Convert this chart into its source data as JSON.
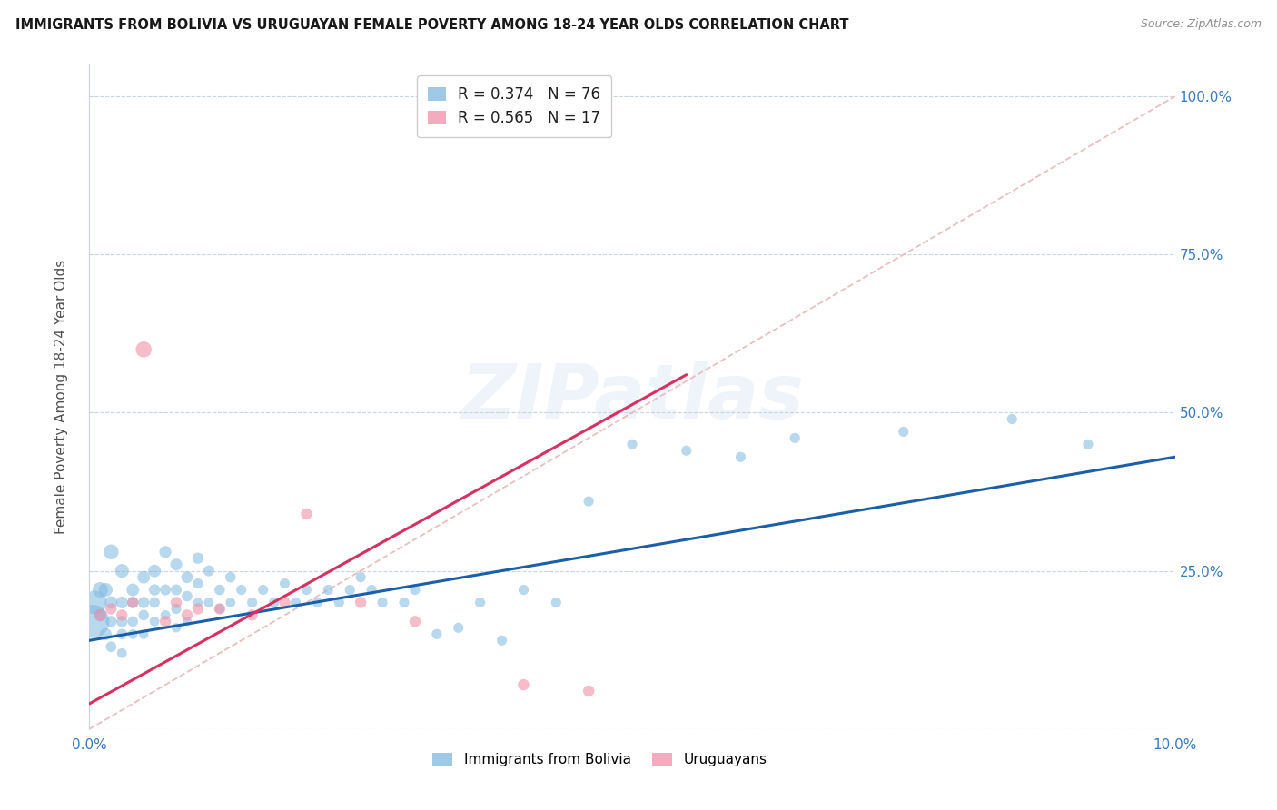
{
  "title": "IMMIGRANTS FROM BOLIVIA VS URUGUAYAN FEMALE POVERTY AMONG 18-24 YEAR OLDS CORRELATION CHART",
  "source": "Source: ZipAtlas.com",
  "ylabel": "Female Poverty Among 18-24 Year Olds",
  "xlim": [
    0.0,
    0.1
  ],
  "ylim": [
    0.0,
    1.05
  ],
  "xticks": [
    0.0,
    0.02,
    0.04,
    0.06,
    0.08,
    0.1
  ],
  "xtick_labels": [
    "0.0%",
    "",
    "",
    "",
    "",
    "10.0%"
  ],
  "ytick_positions": [
    0.0,
    0.25,
    0.5,
    0.75,
    1.0
  ],
  "ytick_labels": [
    "",
    "25.0%",
    "50.0%",
    "75.0%",
    "100.0%"
  ],
  "bolivia_color": "#7fb8e0",
  "uruguay_color": "#f090a8",
  "bolivia_alpha": 0.55,
  "uruguay_alpha": 0.6,
  "trend_bolivia_color": "#1a5fa8",
  "trend_uruguay_color": "#d83060",
  "diagonal_color": "#e8b8b8",
  "watermark": "ZIPatlas",
  "bolivia_R": 0.374,
  "bolivia_N": 76,
  "uruguay_R": 0.565,
  "uruguay_N": 17,
  "bolivia_trend_x": [
    0.0,
    0.1
  ],
  "bolivia_trend_y": [
    0.14,
    0.43
  ],
  "uruguay_trend_x": [
    0.0,
    0.055
  ],
  "uruguay_trend_y": [
    0.04,
    0.56
  ],
  "bolivia_x": [
    0.0003,
    0.0005,
    0.001,
    0.001,
    0.0015,
    0.0015,
    0.002,
    0.002,
    0.002,
    0.002,
    0.003,
    0.003,
    0.003,
    0.003,
    0.003,
    0.004,
    0.004,
    0.004,
    0.004,
    0.005,
    0.005,
    0.005,
    0.005,
    0.006,
    0.006,
    0.006,
    0.006,
    0.007,
    0.007,
    0.007,
    0.008,
    0.008,
    0.008,
    0.008,
    0.009,
    0.009,
    0.009,
    0.01,
    0.01,
    0.01,
    0.011,
    0.011,
    0.012,
    0.012,
    0.013,
    0.013,
    0.014,
    0.015,
    0.016,
    0.017,
    0.018,
    0.019,
    0.02,
    0.021,
    0.022,
    0.023,
    0.024,
    0.025,
    0.026,
    0.027,
    0.029,
    0.03,
    0.032,
    0.034,
    0.036,
    0.038,
    0.04,
    0.043,
    0.046,
    0.05,
    0.055,
    0.06,
    0.065,
    0.075,
    0.085,
    0.092
  ],
  "bolivia_y": [
    0.17,
    0.2,
    0.22,
    0.18,
    0.22,
    0.15,
    0.28,
    0.2,
    0.17,
    0.13,
    0.25,
    0.2,
    0.17,
    0.15,
    0.12,
    0.22,
    0.2,
    0.17,
    0.15,
    0.24,
    0.2,
    0.18,
    0.15,
    0.25,
    0.22,
    0.2,
    0.17,
    0.28,
    0.22,
    0.18,
    0.26,
    0.22,
    0.19,
    0.16,
    0.24,
    0.21,
    0.17,
    0.27,
    0.23,
    0.2,
    0.25,
    0.2,
    0.22,
    0.19,
    0.24,
    0.2,
    0.22,
    0.2,
    0.22,
    0.2,
    0.23,
    0.2,
    0.22,
    0.2,
    0.22,
    0.2,
    0.22,
    0.24,
    0.22,
    0.2,
    0.2,
    0.22,
    0.15,
    0.16,
    0.2,
    0.14,
    0.22,
    0.2,
    0.36,
    0.45,
    0.44,
    0.43,
    0.46,
    0.47,
    0.49,
    0.45
  ],
  "bolivia_size": [
    700,
    350,
    150,
    100,
    120,
    90,
    140,
    100,
    80,
    70,
    120,
    90,
    80,
    70,
    60,
    100,
    80,
    70,
    60,
    100,
    80,
    70,
    60,
    100,
    80,
    70,
    60,
    90,
    75,
    60,
    90,
    75,
    65,
    55,
    85,
    70,
    55,
    80,
    65,
    55,
    75,
    60,
    70,
    60,
    70,
    60,
    65,
    65,
    65,
    65,
    65,
    65,
    65,
    65,
    65,
    65,
    65,
    65,
    65,
    65,
    65,
    65,
    65,
    65,
    65,
    65,
    65,
    65,
    65,
    65,
    65,
    65,
    65,
    65,
    65,
    65
  ],
  "uruguay_x": [
    0.001,
    0.002,
    0.003,
    0.004,
    0.005,
    0.007,
    0.008,
    0.009,
    0.01,
    0.012,
    0.015,
    0.018,
    0.02,
    0.025,
    0.03,
    0.04,
    0.046
  ],
  "uruguay_y": [
    0.18,
    0.19,
    0.18,
    0.2,
    0.6,
    0.17,
    0.2,
    0.18,
    0.19,
    0.19,
    0.18,
    0.2,
    0.34,
    0.2,
    0.17,
    0.07,
    0.06
  ],
  "uruguay_size": [
    90,
    80,
    80,
    80,
    160,
    80,
    80,
    80,
    80,
    80,
    80,
    80,
    80,
    80,
    80,
    80,
    80
  ]
}
